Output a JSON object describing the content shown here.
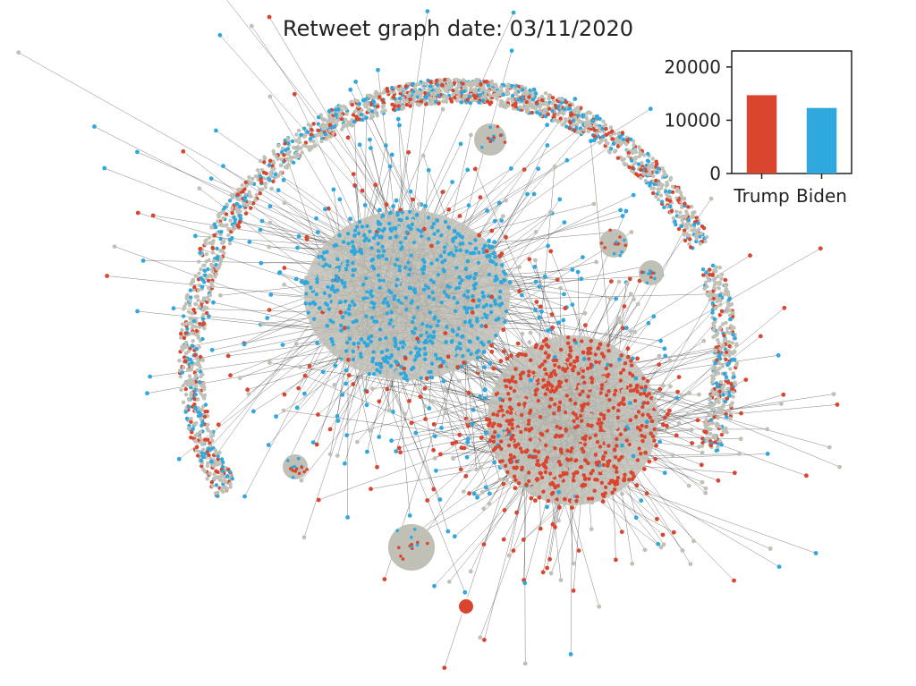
{
  "figure": {
    "title": "Retweet graph date: 03/11/2020"
  },
  "colors": {
    "trump": "#d9452f",
    "biden": "#2ea8dd",
    "neutral": "#c0c0b6",
    "edge": "#1a1a1a"
  },
  "chart_data": [
    {
      "type": "network",
      "description_colors": [
        "trump-red",
        "biden-blue",
        "neutral-grey"
      ],
      "clusters": [
        "biden-cluster",
        "trump-cluster"
      ]
    },
    {
      "type": "bar",
      "categories": [
        "Trump",
        "Biden"
      ],
      "values": [
        14700,
        12300
      ],
      "colors": [
        "#d9452f",
        "#2ea8dd"
      ],
      "ylim": [
        0,
        23000
      ],
      "yticks": [
        0,
        10000,
        20000
      ],
      "ytick_labels": [
        "0",
        "10000",
        "20000"
      ],
      "title": "",
      "xlabel": "",
      "ylabel": ""
    }
  ]
}
